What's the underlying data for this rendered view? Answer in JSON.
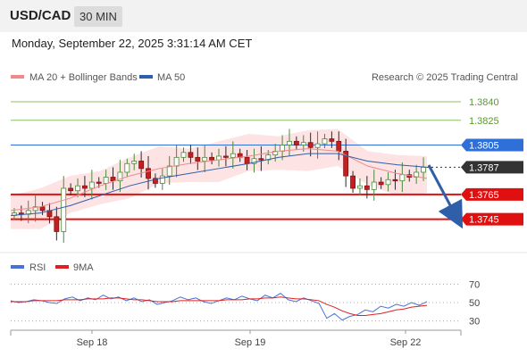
{
  "header": {
    "symbol": "USD/CAD",
    "timeframe": "30 MIN",
    "timestamp": "Monday, September 22, 2025 3:31:14 AM CET"
  },
  "legend": {
    "ma20": "MA 20 + Bollinger Bands",
    "ma50": "MA 50",
    "ma20_color": "#f08a8a",
    "ma50_color": "#2e5fa8",
    "credit": "Research © 2025 Trading Central"
  },
  "rsi_legend": {
    "rsi": "RSI",
    "ma": "9MA",
    "rsi_color": "#4a72d4",
    "ma_color": "#e02020"
  },
  "chart_data": [
    {
      "type": "candlestick",
      "ylim": [
        1.3718,
        1.3853
      ],
      "x_labels": [
        "Sep 18",
        "Sep 19",
        "Sep 22"
      ],
      "current_price": "1.3787",
      "levels": [
        {
          "label": "1.3840",
          "value": 1.384,
          "kind": "target",
          "color": "#8cc060"
        },
        {
          "label": "1.3825",
          "value": 1.3825,
          "kind": "target",
          "color": "#8cc060"
        },
        {
          "label": "1.3805",
          "value": 1.3805,
          "kind": "pivot",
          "color": "#2e6fd8"
        },
        {
          "label": "1.3787",
          "value": 1.3787,
          "kind": "last",
          "color": "#333333"
        },
        {
          "label": "1.3765",
          "value": 1.3765,
          "kind": "support",
          "color": "#e01010"
        },
        {
          "label": "1.3745",
          "value": 1.3745,
          "kind": "support",
          "color": "#e01010"
        }
      ],
      "series": [
        {
          "name": "MA 20 + Bollinger Bands",
          "values": [
            1.3752,
            1.3755,
            1.3762,
            1.3772,
            1.378,
            1.3786,
            1.379,
            1.3793,
            1.3796,
            1.38,
            1.3802,
            1.38,
            1.3788,
            1.3782,
            1.3778
          ]
        },
        {
          "name": "MA 50",
          "values": [
            1.3748,
            1.375,
            1.3756,
            1.3764,
            1.3772,
            1.3778,
            1.3782,
            1.3786,
            1.379,
            1.3795,
            1.3798,
            1.3798,
            1.3792,
            1.3789,
            1.3787
          ]
        }
      ],
      "close_path": [
        1.375,
        1.3749,
        1.3752,
        1.3755,
        1.3752,
        1.3747,
        1.3735,
        1.377,
        1.3768,
        1.3772,
        1.377,
        1.3775,
        1.3774,
        1.3779,
        1.3776,
        1.3783,
        1.379,
        1.3792,
        1.3786,
        1.3778,
        1.3774,
        1.378,
        1.3788,
        1.3795,
        1.3799,
        1.3795,
        1.3792,
        1.3795,
        1.3793,
        1.3796,
        1.3795,
        1.3798,
        1.3795,
        1.379,
        1.3794,
        1.3793,
        1.3797,
        1.38,
        1.3805,
        1.3808,
        1.3805,
        1.3807,
        1.3803,
        1.3806,
        1.381,
        1.3808,
        1.38,
        1.378,
        1.377,
        1.3772,
        1.3769,
        1.3775,
        1.3773,
        1.3777,
        1.3776,
        1.3781,
        1.3779,
        1.3783,
        1.3787
      ]
    },
    {
      "type": "line",
      "ylim": [
        20,
        80
      ],
      "y_ticks": [
        "70",
        "50",
        "30"
      ],
      "series": [
        {
          "name": "RSI",
          "values": [
            52,
            50,
            51,
            53,
            52,
            50,
            49,
            54,
            56,
            52,
            55,
            53,
            58,
            54,
            56,
            52,
            55,
            51,
            53,
            48,
            50,
            52,
            56,
            53,
            55,
            51,
            49,
            52,
            55,
            53,
            57,
            54,
            52,
            58,
            55,
            60,
            53,
            51,
            55,
            52,
            49,
            33,
            38,
            31,
            35,
            37,
            42,
            40,
            46,
            44,
            48,
            46,
            50,
            47,
            51
          ]
        },
        {
          "name": "9MA",
          "values": [
            51,
            51,
            51,
            52,
            52,
            52,
            52,
            53,
            53,
            53,
            54,
            54,
            54,
            55,
            55,
            54,
            53,
            53,
            52,
            51,
            51,
            51,
            52,
            52,
            52,
            52,
            52,
            52,
            53,
            53,
            53,
            54,
            54,
            55,
            55,
            56,
            55,
            54,
            54,
            53,
            52,
            48,
            45,
            41,
            38,
            36,
            36,
            37,
            38,
            40,
            42,
            43,
            45,
            46,
            47
          ]
        }
      ]
    }
  ]
}
